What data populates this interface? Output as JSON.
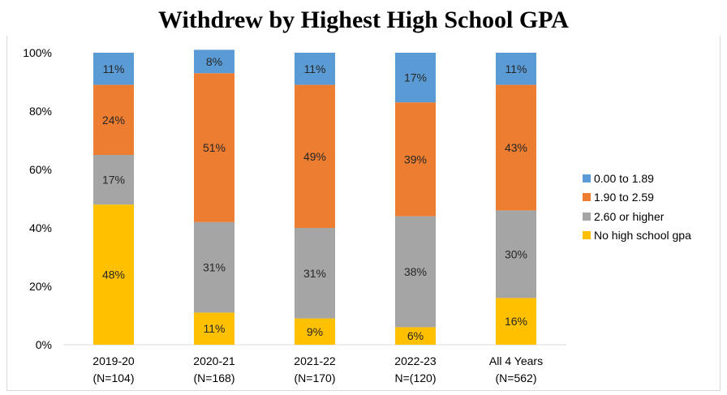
{
  "chart_data": {
    "type": "bar",
    "stacked": true,
    "title": "Withdrew by Highest High School GPA",
    "categories": [
      [
        "2019-20",
        "(N=104)"
      ],
      [
        "2020-21",
        "(N=168)"
      ],
      [
        "2021-22",
        "(N=170)"
      ],
      [
        "2022-23",
        "N=(120)"
      ],
      [
        "All 4 Years",
        "(N=562)"
      ]
    ],
    "ylim": [
      0,
      100
    ],
    "yticks": [
      "0%",
      "20%",
      "40%",
      "60%",
      "80%",
      "100%"
    ],
    "legend_position": "right",
    "series": [
      {
        "name": "No high school gpa",
        "color": "#FFC000",
        "values": [
          48,
          11,
          9,
          6,
          16
        ],
        "labels": [
          "48%",
          "11%",
          "9%",
          "6%",
          "16%"
        ]
      },
      {
        "name": "2.60 or higher",
        "color": "#A5A5A5",
        "values": [
          17,
          31,
          31,
          38,
          30
        ],
        "labels": [
          "17%",
          "31%",
          "31%",
          "38%",
          "30%"
        ]
      },
      {
        "name": "1.90 to 2.59",
        "color": "#ED7D31",
        "values": [
          24,
          51,
          49,
          39,
          43
        ],
        "labels": [
          "24%",
          "51%",
          "49%",
          "39%",
          "43%"
        ]
      },
      {
        "name": "0.00 to 1.89",
        "color": "#5B9BD5",
        "values": [
          11,
          8,
          11,
          17,
          11
        ],
        "labels": [
          "11%",
          "8%",
          "11%",
          "17%",
          "11%"
        ]
      }
    ],
    "legend_order": [
      "0.00 to 1.89",
      "1.90 to 2.59",
      "2.60 or higher",
      "No high school gpa"
    ]
  }
}
